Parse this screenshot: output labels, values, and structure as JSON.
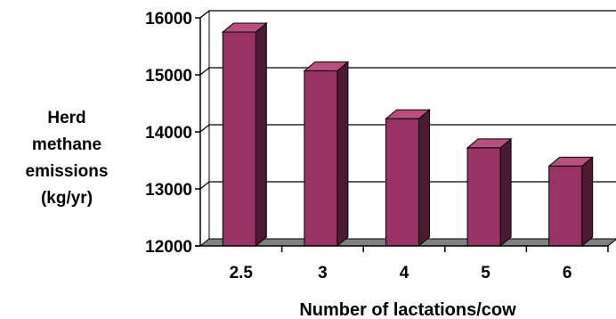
{
  "chart_data": {
    "type": "bar",
    "categories": [
      "2.5",
      "3",
      "4",
      "5",
      "6"
    ],
    "values": [
      15750,
      15070,
      14230,
      13720,
      13400
    ],
    "xlabel": "Number of lactations/cow",
    "ylabel_lines": [
      "Herd",
      "methane",
      "emissions",
      "(kg/yr)"
    ],
    "ylim": [
      12000,
      16000
    ],
    "yticks": [
      "12000",
      "13000",
      "14000",
      "15000",
      "16000"
    ],
    "grid": true,
    "legend": "none",
    "colors": {
      "bar_front": "#993366",
      "bar_side": "#4d1a33",
      "bar_top": "#b8507f",
      "floor": "#808080",
      "wall": "#ffffff"
    }
  }
}
